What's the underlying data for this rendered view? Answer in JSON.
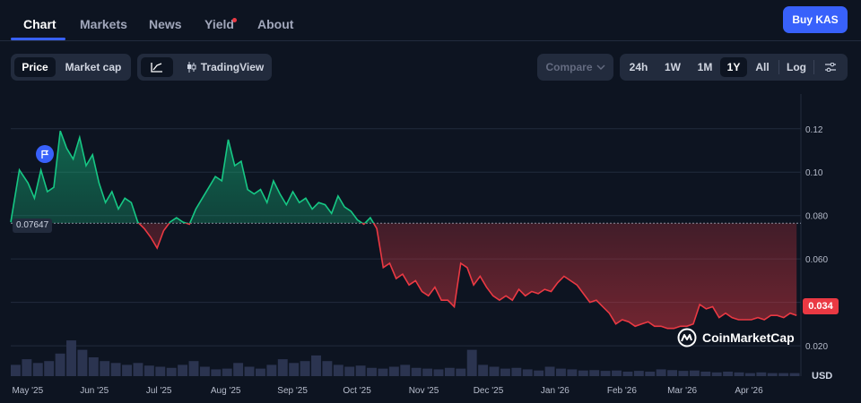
{
  "nav": {
    "tabs": [
      "Chart",
      "Markets",
      "News",
      "Yield",
      "About"
    ],
    "buy_label": "Buy KAS"
  },
  "toolbar": {
    "price_label": "Price",
    "marketcap_label": "Market cap",
    "tradingview_label": "TradingView",
    "compare_label": "Compare",
    "ranges": [
      "24h",
      "1W",
      "1M",
      "1Y",
      "All",
      "Log"
    ],
    "active_range": "1Y"
  },
  "colors": {
    "up": "#16c784",
    "down": "#ea3943",
    "accent": "#3861fb"
  },
  "chart_data": {
    "type": "area",
    "baseline_price": 0.07647,
    "baseline_label": "0.07647",
    "current_price_label": "0.034",
    "y_axis_unit": "USD",
    "ylim": [
      0.006,
      0.136
    ],
    "y_ticks": [
      0.02,
      0.04,
      0.06,
      0.08,
      0.1,
      0.12
    ],
    "y_tick_labels": [
      "0.020",
      "0.040",
      "0.060",
      "0.080",
      "0.10",
      "0.12"
    ],
    "x_ticks": [
      "May '25",
      "Jun '25",
      "Jul '25",
      "Aug '25",
      "Sep '25",
      "Oct '25",
      "Nov '25",
      "Dec '25",
      "Jan '26",
      "Feb '26",
      "Mar '26",
      "Apr '26"
    ],
    "x_tick_dates": [
      "2025-05-01",
      "2025-06-01",
      "2025-07-01",
      "2025-08-01",
      "2025-09-01",
      "2025-10-01",
      "2025-11-01",
      "2025-12-01",
      "2026-01-01",
      "2026-02-01",
      "2026-03-01",
      "2026-04-01"
    ],
    "series": [
      {
        "x": [
          "2025-04-24",
          "2025-04-28",
          "2025-05-02",
          "2025-05-05",
          "2025-05-08",
          "2025-05-11",
          "2025-05-14",
          "2025-05-17",
          "2025-05-20",
          "2025-05-23",
          "2025-05-26",
          "2025-05-29",
          "2025-06-01",
          "2025-06-04",
          "2025-06-07",
          "2025-06-10",
          "2025-06-13",
          "2025-06-16",
          "2025-06-19",
          "2025-06-22",
          "2025-06-25",
          "2025-06-28",
          "2025-07-01",
          "2025-07-04",
          "2025-07-07",
          "2025-07-10",
          "2025-07-13",
          "2025-07-16",
          "2025-07-19",
          "2025-07-22",
          "2025-07-25",
          "2025-07-28",
          "2025-07-31",
          "2025-08-03",
          "2025-08-06",
          "2025-08-09",
          "2025-08-12",
          "2025-08-15",
          "2025-08-18",
          "2025-08-21",
          "2025-08-24",
          "2025-08-27",
          "2025-08-30",
          "2025-09-02",
          "2025-09-05",
          "2025-09-08",
          "2025-09-11",
          "2025-09-14",
          "2025-09-17",
          "2025-09-20",
          "2025-09-23",
          "2025-09-26",
          "2025-09-29",
          "2025-10-02",
          "2025-10-05",
          "2025-10-08",
          "2025-10-11",
          "2025-10-14",
          "2025-10-17",
          "2025-10-20",
          "2025-10-23",
          "2025-10-26",
          "2025-10-29",
          "2025-11-01",
          "2025-11-04",
          "2025-11-07",
          "2025-11-10",
          "2025-11-13",
          "2025-11-16",
          "2025-11-19",
          "2025-11-22",
          "2025-11-25",
          "2025-11-28",
          "2025-12-01",
          "2025-12-04",
          "2025-12-07",
          "2025-12-10",
          "2025-12-13",
          "2025-12-16",
          "2025-12-19",
          "2025-12-22",
          "2025-12-25",
          "2025-12-28",
          "2025-12-31",
          "2026-01-03",
          "2026-01-06",
          "2026-01-09",
          "2026-01-12",
          "2026-01-15",
          "2026-01-18",
          "2026-01-21",
          "2026-01-24",
          "2026-01-27",
          "2026-01-30",
          "2026-02-02",
          "2026-02-05",
          "2026-02-08",
          "2026-02-11",
          "2026-02-14",
          "2026-02-17",
          "2026-02-20",
          "2026-02-23",
          "2026-02-26",
          "2026-03-01",
          "2026-03-04",
          "2026-03-07",
          "2026-03-10",
          "2026-03-13",
          "2026-03-16",
          "2026-03-19",
          "2026-03-22",
          "2026-03-25",
          "2026-03-28",
          "2026-03-31",
          "2026-04-03",
          "2026-04-06",
          "2026-04-09",
          "2026-04-12",
          "2026-04-15",
          "2026-04-18",
          "2026-04-21",
          "2026-04-24"
        ],
        "values": [
          0.077,
          0.101,
          0.095,
          0.088,
          0.101,
          0.091,
          0.093,
          0.119,
          0.111,
          0.106,
          0.116,
          0.103,
          0.108,
          0.095,
          0.086,
          0.091,
          0.083,
          0.088,
          0.086,
          0.077,
          0.074,
          0.07,
          0.065,
          0.073,
          0.077,
          0.079,
          0.077,
          0.076,
          0.083,
          0.088,
          0.093,
          0.098,
          0.096,
          0.115,
          0.103,
          0.105,
          0.092,
          0.09,
          0.092,
          0.086,
          0.096,
          0.09,
          0.085,
          0.091,
          0.086,
          0.088,
          0.083,
          0.086,
          0.085,
          0.081,
          0.089,
          0.084,
          0.082,
          0.078,
          0.076,
          0.079,
          0.074,
          0.056,
          0.058,
          0.051,
          0.053,
          0.048,
          0.05,
          0.045,
          0.043,
          0.047,
          0.041,
          0.041,
          0.038,
          0.058,
          0.056,
          0.048,
          0.052,
          0.047,
          0.043,
          0.041,
          0.043,
          0.041,
          0.046,
          0.043,
          0.045,
          0.044,
          0.046,
          0.045,
          0.049,
          0.052,
          0.05,
          0.048,
          0.044,
          0.04,
          0.041,
          0.038,
          0.035,
          0.03,
          0.032,
          0.031,
          0.029,
          0.03,
          0.031,
          0.029,
          0.029,
          0.028,
          0.028,
          0.029,
          0.029,
          0.03,
          0.039,
          0.037,
          0.038,
          0.033,
          0.035,
          0.033,
          0.032,
          0.032,
          0.032,
          0.033,
          0.032,
          0.034,
          0.034,
          0.033,
          0.035,
          0.034
        ]
      }
    ],
    "volume": [
      0.3,
      0.45,
      0.35,
      0.4,
      0.6,
      0.95,
      0.7,
      0.5,
      0.4,
      0.35,
      0.3,
      0.35,
      0.28,
      0.25,
      0.22,
      0.3,
      0.4,
      0.25,
      0.18,
      0.2,
      0.35,
      0.25,
      0.2,
      0.3,
      0.45,
      0.35,
      0.4,
      0.55,
      0.4,
      0.3,
      0.25,
      0.28,
      0.22,
      0.2,
      0.25,
      0.3,
      0.22,
      0.2,
      0.18,
      0.22,
      0.2,
      0.7,
      0.3,
      0.25,
      0.2,
      0.22,
      0.18,
      0.15,
      0.25,
      0.2,
      0.18,
      0.15,
      0.16,
      0.14,
      0.15,
      0.12,
      0.14,
      0.12,
      0.18,
      0.16,
      0.14,
      0.15,
      0.12,
      0.1,
      0.12,
      0.1,
      0.08,
      0.1,
      0.08,
      0.08,
      0.08
    ]
  }
}
